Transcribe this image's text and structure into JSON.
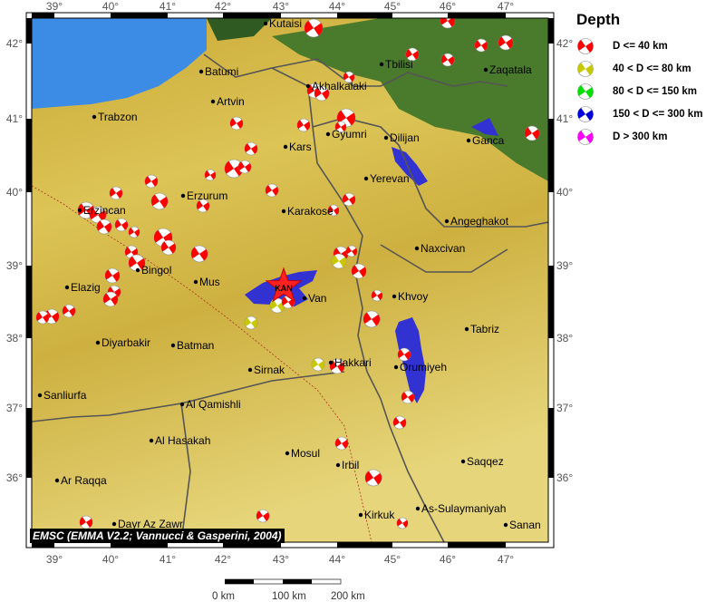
{
  "map": {
    "lon_ticks": [
      "39°",
      "40°",
      "41°",
      "42°",
      "43°",
      "44°",
      "45°",
      "46°",
      "47°"
    ],
    "lat_ticks": [
      "42°",
      "41°",
      "40°",
      "39°",
      "38°",
      "37°",
      "36°"
    ],
    "event_marker": "KAN",
    "cities": [
      "Kutaisi",
      "Batumi",
      "Artvin",
      "Trabzon",
      "Akhalkalaki",
      "Tbilisi",
      "Zaqatala",
      "Kars",
      "Gyumri",
      "Dilijan",
      "Ganca",
      "Yerevan",
      "Erzurum",
      "Karakose",
      "Angeghakot",
      "Erzincan",
      "Naxcivan",
      "Bingol",
      "Mus",
      "Elazig",
      "Van",
      "Khvoy",
      "Tabriz",
      "Diyarbakir",
      "Batman",
      "Sirnak",
      "Hakkari",
      "Orumiyeh",
      "Sanliurfa",
      "Al Qamishli",
      "Al Hasakah",
      "Mosul",
      "Irbil",
      "Saqqez",
      "Ar Raqqa",
      "Kirkuk",
      "As-Sulaymaniyah",
      "Dayr Az Zawr",
      "Sanan"
    ],
    "credit": "EMSC (EMMA V2.2; Vannucci & Gasperini, 2004)"
  },
  "legend": {
    "title": "Depth",
    "items": [
      {
        "label": "D <= 40 km",
        "color": "#ff0000"
      },
      {
        "label": "40 < D <= 80 km",
        "color": "#c8c800"
      },
      {
        "label": "80 < D <= 150 km",
        "color": "#00e000"
      },
      {
        "label": "150 < D <= 300 km",
        "color": "#0000dd"
      },
      {
        "label": "D > 300 km",
        "color": "#ff00ff"
      }
    ]
  },
  "scale_bar": {
    "labels": [
      "0 km",
      "100 km",
      "200 km"
    ]
  },
  "colors": {
    "sea": "#3c8ce6",
    "lake": "#3232d2",
    "land": "#d8c04a",
    "lowland": "#3f6e28"
  }
}
